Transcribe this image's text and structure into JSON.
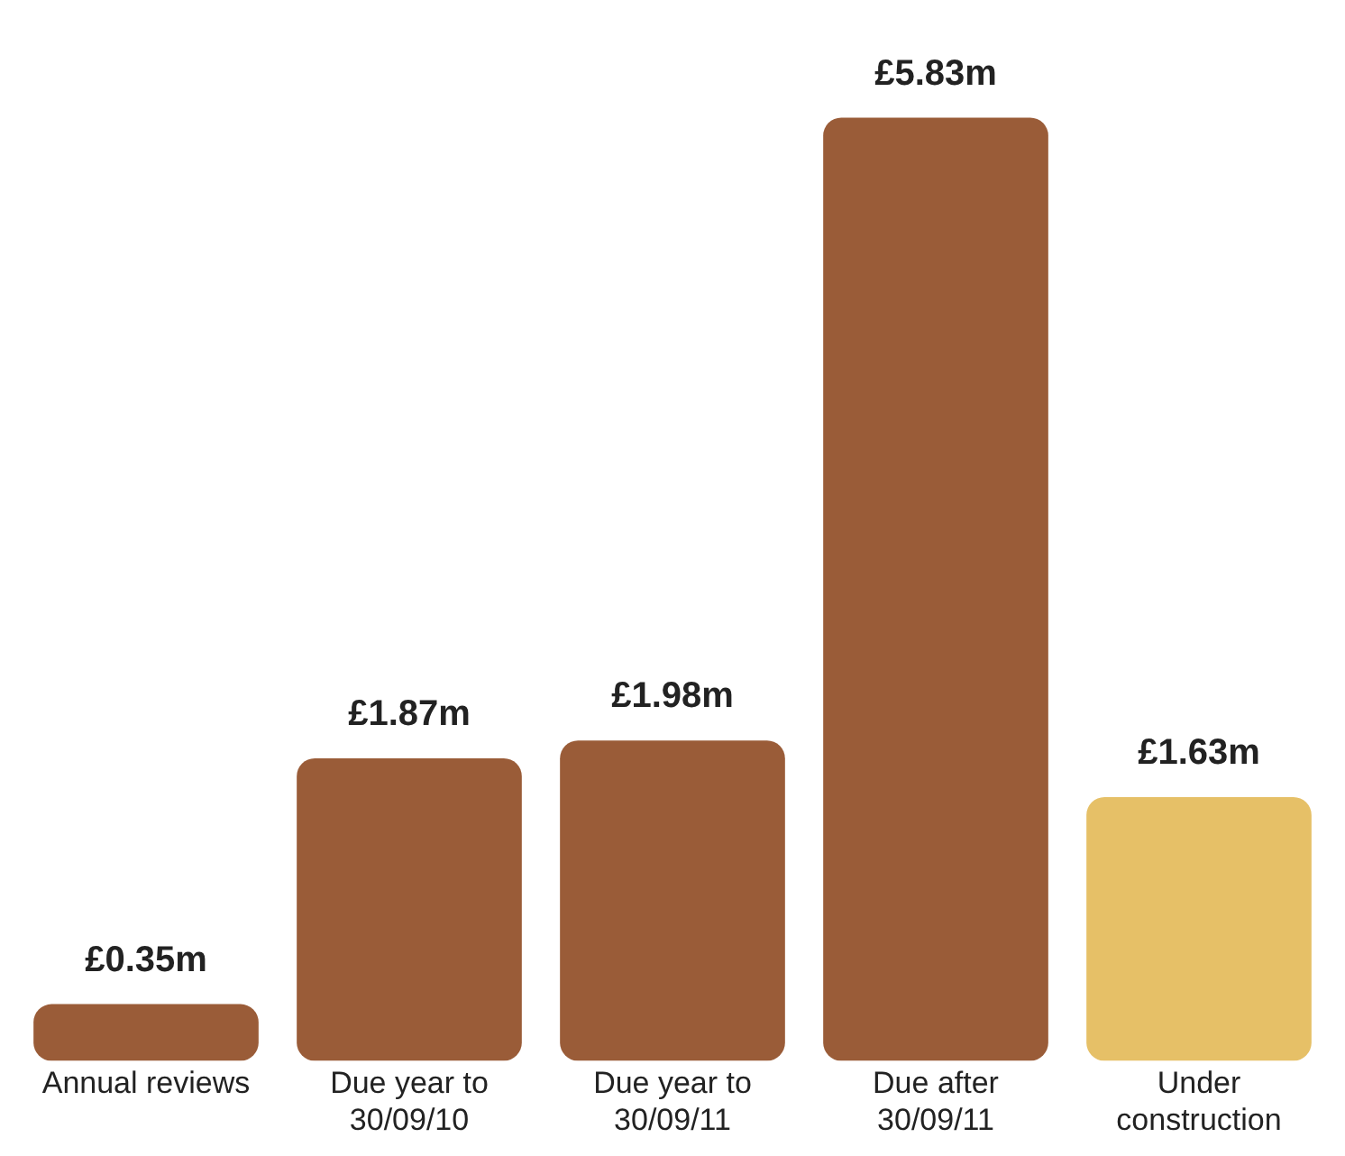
{
  "chart_data": {
    "type": "bar",
    "categories": [
      "Annual reviews",
      "Due year to 30/09/10",
      "Due year to 30/09/11",
      "Due after 30/09/11",
      "Under construction"
    ],
    "values": [
      0.35,
      1.87,
      1.98,
      5.83,
      1.63
    ],
    "colors": [
      "#9a5c38",
      "#9a5c38",
      "#9a5c38",
      "#9a5c38",
      "#e6c067"
    ],
    "value_labels": [
      "£0.35m",
      "£1.87m",
      "£1.98m",
      "£5.83m",
      "£1.63m"
    ],
    "tick_labels": "x",
    "grid": false,
    "legend": false
  }
}
